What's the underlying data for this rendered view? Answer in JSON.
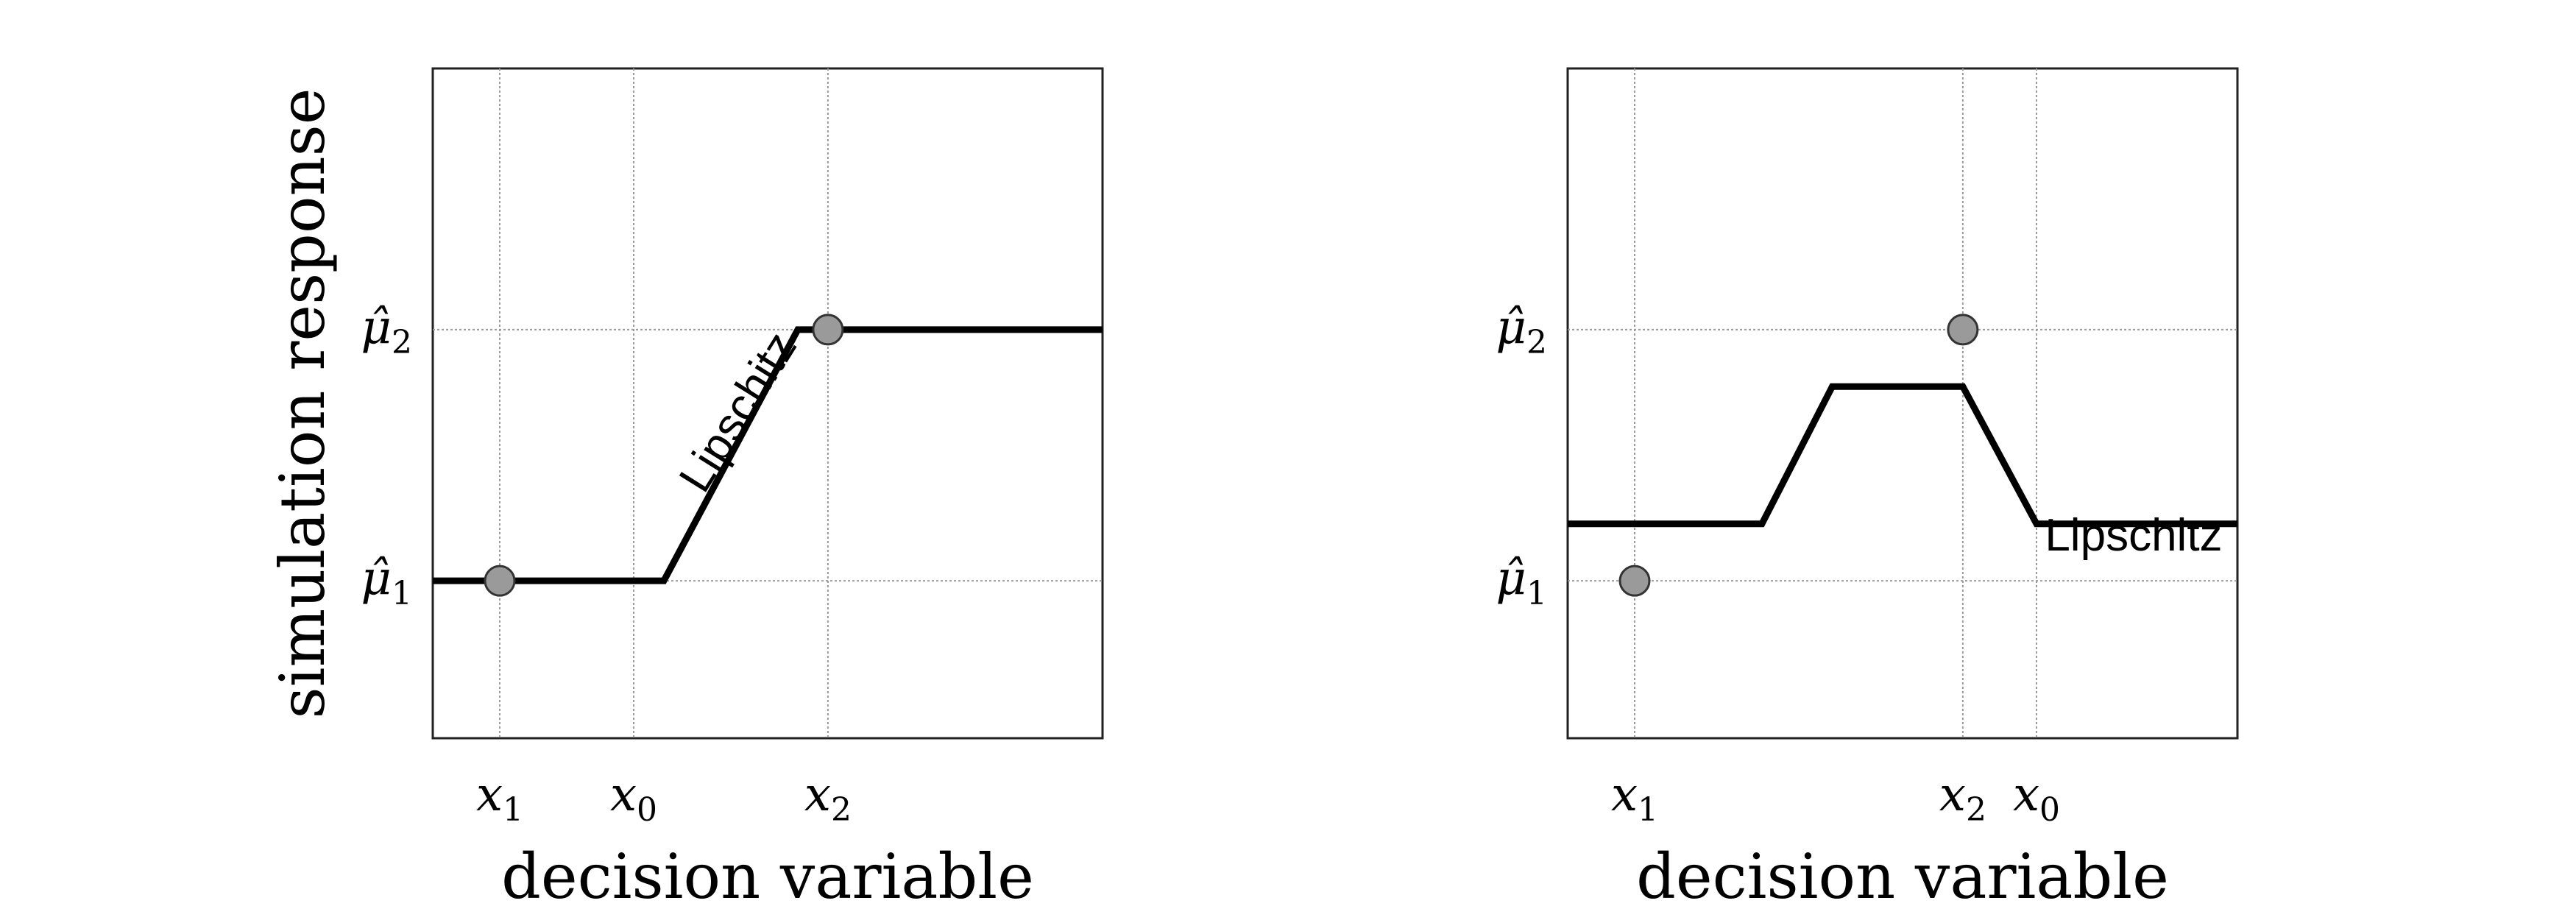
{
  "chart_data": [
    {
      "type": "line",
      "title": "",
      "xlabel": "decision variable",
      "ylabel": "simulation response",
      "xlim": [
        0,
        10
      ],
      "ylim": [
        0,
        10
      ],
      "grid": true,
      "x_ticks": [
        {
          "value": 1.0,
          "base": "x",
          "sub": "1"
        },
        {
          "value": 3.0,
          "base": "x",
          "sub": "0"
        },
        {
          "value": 5.9,
          "base": "x",
          "sub": "2"
        }
      ],
      "y_ticks": [
        {
          "value": 2.35,
          "base": "μ̂",
          "sub": "1"
        },
        {
          "value": 6.1,
          "base": "μ̂",
          "sub": "2"
        }
      ],
      "series": [
        {
          "x": [
            0,
            3.45,
            5.45,
            10
          ],
          "y": [
            2.35,
            2.35,
            6.1,
            6.1
          ]
        }
      ],
      "points": [
        {
          "x": 1.0,
          "y": 2.35
        },
        {
          "x": 5.9,
          "y": 6.1
        }
      ],
      "annotations": [
        {
          "text": "Lipschitz",
          "x": 4.75,
          "y": 4.75,
          "angle": -58
        }
      ]
    },
    {
      "type": "line",
      "title": "",
      "xlabel": "decision variable",
      "ylabel": "",
      "xlim": [
        0,
        10
      ],
      "ylim": [
        0,
        10
      ],
      "grid": true,
      "x_ticks": [
        {
          "value": 1.0,
          "base": "x",
          "sub": "1"
        },
        {
          "value": 5.9,
          "base": "x",
          "sub": "2"
        },
        {
          "value": 7.0,
          "base": "x",
          "sub": "0"
        }
      ],
      "y_ticks": [
        {
          "value": 2.35,
          "base": "μ̂",
          "sub": "1"
        },
        {
          "value": 6.1,
          "base": "μ̂",
          "sub": "2"
        }
      ],
      "series": [
        {
          "x": [
            0,
            2.9,
            3.95,
            5.9,
            7.0,
            10
          ],
          "y": [
            3.2,
            3.2,
            5.25,
            5.25,
            3.2,
            3.2
          ]
        }
      ],
      "points": [
        {
          "x": 1.0,
          "y": 2.35
        },
        {
          "x": 5.9,
          "y": 6.1
        }
      ],
      "annotations": [
        {
          "text": "Lipschitz",
          "x": 8.45,
          "y": 2.8,
          "angle": 0
        }
      ]
    }
  ],
  "colors": {
    "axis": "#222222",
    "grid": "#9a9a9a",
    "line": "#000000",
    "marker_fill": "#9a9a9a",
    "marker_stroke": "#333333"
  }
}
